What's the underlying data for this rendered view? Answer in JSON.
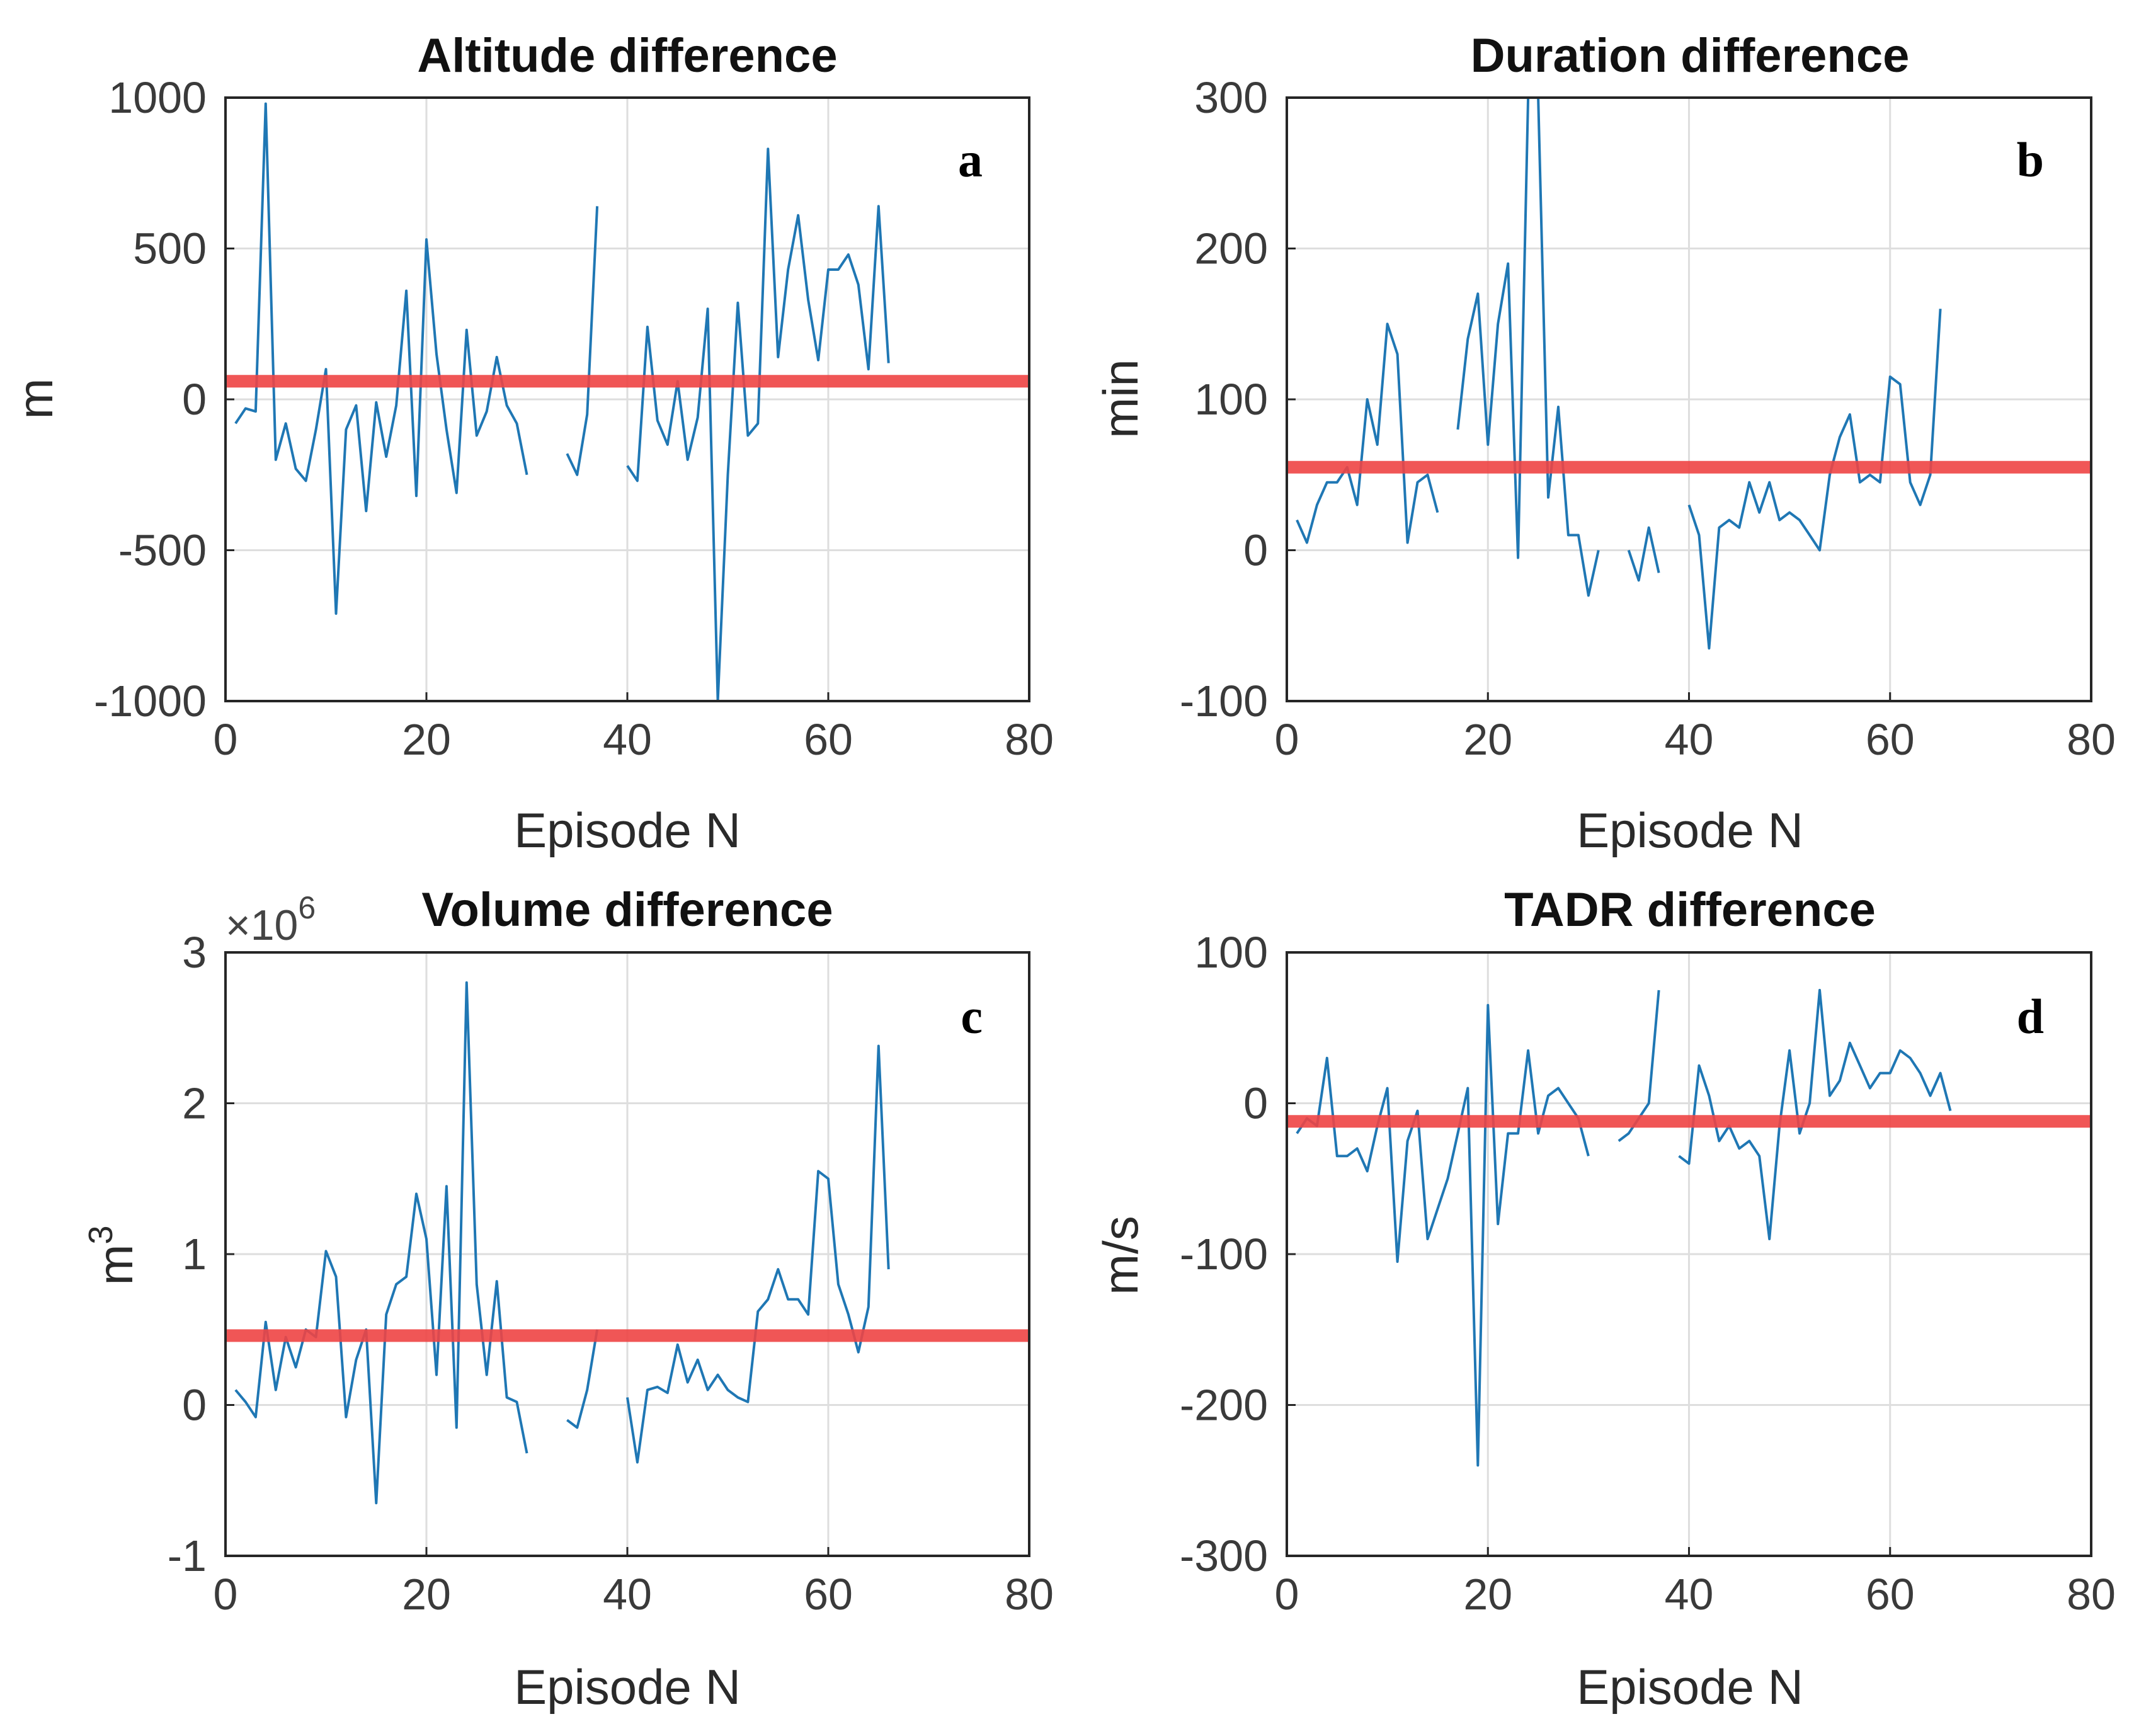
{
  "chart_data": [
    {
      "type": "line",
      "panel": "a",
      "title": "Altitude difference",
      "xlabel": "Episode N",
      "ylabel": "m",
      "xlim": [
        0,
        80
      ],
      "ylim": [
        -1000,
        1000
      ],
      "xticks": [
        0,
        20,
        40,
        60,
        80
      ],
      "yticks": [
        -1000,
        -500,
        0,
        500,
        1000
      ],
      "xtick_labels": [
        "0",
        "20",
        "40",
        "60",
        "80"
      ],
      "ytick_labels": [
        "-1000",
        "-500",
        "0",
        "500",
        "1000"
      ],
      "grid": true,
      "mean_line": 60,
      "series": [
        {
          "name": "difference",
          "color": "#1f77b4",
          "x": [
            1,
            2,
            3,
            4,
            5,
            6,
            7,
            8,
            9,
            10,
            11,
            12,
            13,
            14,
            15,
            16,
            17,
            18,
            19,
            20,
            21,
            22,
            23,
            24,
            25,
            26,
            27,
            28,
            29,
            30,
            31,
            32,
            33,
            34,
            35,
            36,
            37,
            38,
            39,
            40,
            41,
            42,
            43,
            44,
            45,
            46,
            47,
            48,
            49,
            50,
            51,
            52,
            53,
            54,
            55,
            56,
            57,
            58,
            59,
            60,
            61,
            62,
            63,
            64,
            65,
            66
          ],
          "y": [
            -80,
            -30,
            -40,
            980,
            -200,
            -80,
            -230,
            -270,
            -100,
            100,
            -710,
            -100,
            -20,
            -370,
            -10,
            -190,
            -20,
            360,
            -320,
            530,
            150,
            -100,
            -310,
            230,
            -120,
            -40,
            140,
            -20,
            -80,
            -250,
            null,
            null,
            null,
            -180,
            -250,
            -50,
            640,
            null,
            null,
            -220,
            -270,
            240,
            -70,
            -150,
            60,
            -200,
            -60,
            300,
            -1000,
            -250,
            320,
            -120,
            -80,
            830,
            140,
            430,
            610,
            330,
            130,
            430,
            430,
            480,
            380,
            100,
            640,
            120
          ]
        }
      ]
    },
    {
      "type": "line",
      "panel": "b",
      "title": "Duration difference",
      "xlabel": "Episode N",
      "ylabel": "min",
      "xlim": [
        0,
        80
      ],
      "ylim": [
        -100,
        300
      ],
      "xticks": [
        0,
        20,
        40,
        60,
        80
      ],
      "yticks": [
        -100,
        0,
        100,
        200,
        300
      ],
      "xtick_labels": [
        "0",
        "20",
        "40",
        "60",
        "80"
      ],
      "ytick_labels": [
        "-100",
        "0",
        "100",
        "200",
        "300"
      ],
      "grid": true,
      "mean_line": 55,
      "series": [
        {
          "name": "difference",
          "color": "#1f77b4",
          "x": [
            1,
            2,
            3,
            4,
            5,
            6,
            7,
            8,
            9,
            10,
            11,
            12,
            13,
            14,
            15,
            16,
            17,
            18,
            19,
            20,
            21,
            22,
            23,
            24,
            25,
            26,
            27,
            28,
            29,
            30,
            31,
            32,
            33,
            34,
            35,
            36,
            37,
            38,
            39,
            40,
            41,
            42,
            43,
            44,
            45,
            46,
            47,
            48,
            49,
            50,
            51,
            52,
            53,
            54,
            55,
            56,
            57,
            58,
            59,
            60,
            61,
            62,
            63,
            64,
            65,
            66
          ],
          "y": [
            20,
            5,
            30,
            45,
            45,
            55,
            30,
            100,
            70,
            150,
            130,
            5,
            45,
            50,
            25,
            null,
            80,
            140,
            170,
            70,
            150,
            190,
            -5,
            300,
            300,
            35,
            95,
            10,
            10,
            -30,
            0,
            null,
            null,
            0,
            -20,
            15,
            -15,
            null,
            null,
            30,
            10,
            -65,
            15,
            20,
            15,
            45,
            25,
            45,
            20,
            25,
            20,
            10,
            0,
            50,
            75,
            90,
            45,
            50,
            45,
            115,
            110,
            45,
            30,
            50,
            160,
            null
          ]
        }
      ]
    },
    {
      "type": "line",
      "panel": "c",
      "title": "Volume difference",
      "xlabel": "Episode N",
      "ylabel": "m3",
      "ylabel_base": "m",
      "ylabel_sup": "3",
      "scale_base": "×10",
      "scale_exp": "6",
      "xlim": [
        0,
        80
      ],
      "ylim": [
        -1,
        3
      ],
      "xticks": [
        0,
        20,
        40,
        60,
        80
      ],
      "yticks": [
        -1,
        0,
        1,
        2,
        3
      ],
      "xtick_labels": [
        "0",
        "20",
        "40",
        "60",
        "80"
      ],
      "ytick_labels": [
        "-1",
        "0",
        "1",
        "2",
        "3"
      ],
      "grid": true,
      "mean_line": 0.46,
      "series": [
        {
          "name": "difference",
          "color": "#1f77b4",
          "x": [
            1,
            2,
            3,
            4,
            5,
            6,
            7,
            8,
            9,
            10,
            11,
            12,
            13,
            14,
            15,
            16,
            17,
            18,
            19,
            20,
            21,
            22,
            23,
            24,
            25,
            26,
            27,
            28,
            29,
            30,
            31,
            32,
            33,
            34,
            35,
            36,
            37,
            38,
            39,
            40,
            41,
            42,
            43,
            44,
            45,
            46,
            47,
            48,
            49,
            50,
            51,
            52,
            53,
            54,
            55,
            56,
            57,
            58,
            59,
            60,
            61,
            62,
            63,
            64,
            65,
            66
          ],
          "y": [
            0.1,
            0.02,
            -0.08,
            0.55,
            0.1,
            0.45,
            0.25,
            0.5,
            0.45,
            1.02,
            0.85,
            -0.08,
            0.3,
            0.5,
            -0.65,
            0.6,
            0.8,
            0.85,
            1.4,
            1.1,
            0.2,
            1.45,
            -0.15,
            2.8,
            0.8,
            0.2,
            0.82,
            0.05,
            0.02,
            -0.32,
            null,
            null,
            null,
            -0.1,
            -0.15,
            0.1,
            0.5,
            null,
            null,
            0.05,
            -0.38,
            0.1,
            0.12,
            0.08,
            0.4,
            0.15,
            0.3,
            0.1,
            0.2,
            0.1,
            0.05,
            0.02,
            0.62,
            0.7,
            0.9,
            0.7,
            0.7,
            0.6,
            1.55,
            1.5,
            0.8,
            0.6,
            0.35,
            0.65,
            2.38,
            0.9
          ]
        }
      ]
    },
    {
      "type": "line",
      "panel": "d",
      "title": "TADR difference",
      "xlabel": "Episode N",
      "ylabel": "m/s",
      "xlim": [
        0,
        80
      ],
      "ylim": [
        -300,
        100
      ],
      "xticks": [
        0,
        20,
        40,
        60,
        80
      ],
      "yticks": [
        -300,
        -200,
        -100,
        0,
        100
      ],
      "xtick_labels": [
        "0",
        "20",
        "40",
        "60",
        "80"
      ],
      "ytick_labels": [
        "-300",
        "-200",
        "-100",
        "0",
        "100"
      ],
      "grid": true,
      "mean_line": -12,
      "series": [
        {
          "name": "difference",
          "color": "#1f77b4",
          "x": [
            1,
            2,
            3,
            4,
            5,
            6,
            7,
            8,
            9,
            10,
            11,
            12,
            13,
            14,
            15,
            16,
            17,
            18,
            19,
            20,
            21,
            22,
            23,
            24,
            25,
            26,
            27,
            28,
            29,
            30,
            31,
            32,
            33,
            34,
            35,
            36,
            37,
            38,
            39,
            40,
            41,
            42,
            43,
            44,
            45,
            46,
            47,
            48,
            49,
            50,
            51,
            52,
            53,
            54,
            55,
            56,
            57,
            58,
            59,
            60,
            61,
            62,
            63,
            64,
            65,
            66
          ],
          "y": [
            -20,
            -10,
            -15,
            30,
            -35,
            -35,
            -30,
            -45,
            -15,
            10,
            -105,
            -25,
            -5,
            -90,
            -70,
            -50,
            -20,
            10,
            -240,
            65,
            -80,
            -20,
            -20,
            35,
            -20,
            5,
            10,
            0,
            -10,
            -35,
            null,
            null,
            -25,
            -20,
            -10,
            0,
            75,
            null,
            -35,
            -40,
            25,
            5,
            -25,
            -15,
            -30,
            -25,
            -35,
            -90,
            -15,
            35,
            -20,
            0,
            75,
            5,
            15,
            40,
            25,
            10,
            20,
            20,
            35,
            30,
            20,
            5,
            20,
            -5
          ]
        }
      ]
    }
  ]
}
